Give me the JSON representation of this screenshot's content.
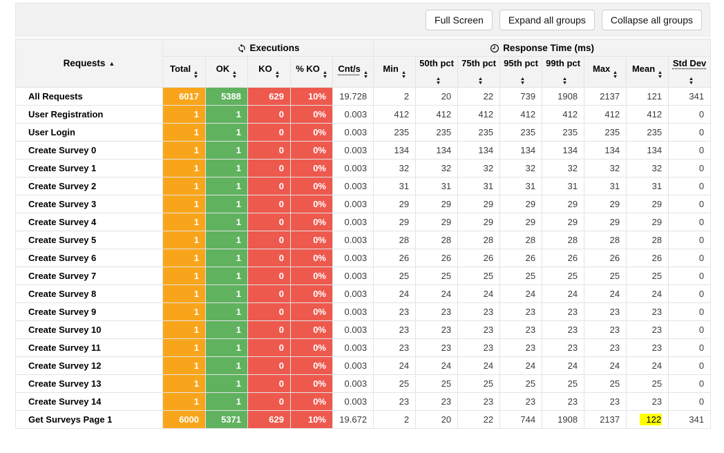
{
  "toolbar": {
    "full_screen": "Full Screen",
    "expand_all": "Expand all groups",
    "collapse_all": "Collapse all groups"
  },
  "table": {
    "requests_label": "Requests",
    "sort_ascending_indicator": "▲",
    "groups": {
      "executions": "Executions",
      "response_time": "Response Time (ms)"
    },
    "columns": {
      "total": "Total",
      "ok": "OK",
      "ko": "KO",
      "ko_pct": "% KO",
      "cnt": "Cnt/s",
      "min": "Min",
      "p50": "50th pct",
      "p75": "75th pct",
      "p95": "95th pct",
      "p99": "99th pct",
      "max": "Max",
      "mean": "Mean",
      "stddev": "Std Dev"
    },
    "accent_colors": {
      "total": "#F9A51B",
      "ok": "#60B25F",
      "ko": "#EE594E",
      "highlight": "#FFFF00"
    },
    "rows": [
      {
        "name": "All Requests",
        "total": "6017",
        "ok": "5388",
        "ko": "629",
        "ko_pct": "10%",
        "cnt": "19.728",
        "min": "2",
        "p50": "20",
        "p75": "22",
        "p95": "739",
        "p99": "1908",
        "max": "2137",
        "mean": "121",
        "stddev": "341"
      },
      {
        "name": "User Registration",
        "total": "1",
        "ok": "1",
        "ko": "0",
        "ko_pct": "0%",
        "cnt": "0.003",
        "min": "412",
        "p50": "412",
        "p75": "412",
        "p95": "412",
        "p99": "412",
        "max": "412",
        "mean": "412",
        "stddev": "0"
      },
      {
        "name": "User Login",
        "total": "1",
        "ok": "1",
        "ko": "0",
        "ko_pct": "0%",
        "cnt": "0.003",
        "min": "235",
        "p50": "235",
        "p75": "235",
        "p95": "235",
        "p99": "235",
        "max": "235",
        "mean": "235",
        "stddev": "0"
      },
      {
        "name": "Create Survey 0",
        "total": "1",
        "ok": "1",
        "ko": "0",
        "ko_pct": "0%",
        "cnt": "0.003",
        "min": "134",
        "p50": "134",
        "p75": "134",
        "p95": "134",
        "p99": "134",
        "max": "134",
        "mean": "134",
        "stddev": "0"
      },
      {
        "name": "Create Survey 1",
        "total": "1",
        "ok": "1",
        "ko": "0",
        "ko_pct": "0%",
        "cnt": "0.003",
        "min": "32",
        "p50": "32",
        "p75": "32",
        "p95": "32",
        "p99": "32",
        "max": "32",
        "mean": "32",
        "stddev": "0"
      },
      {
        "name": "Create Survey 2",
        "total": "1",
        "ok": "1",
        "ko": "0",
        "ko_pct": "0%",
        "cnt": "0.003",
        "min": "31",
        "p50": "31",
        "p75": "31",
        "p95": "31",
        "p99": "31",
        "max": "31",
        "mean": "31",
        "stddev": "0"
      },
      {
        "name": "Create Survey 3",
        "total": "1",
        "ok": "1",
        "ko": "0",
        "ko_pct": "0%",
        "cnt": "0.003",
        "min": "29",
        "p50": "29",
        "p75": "29",
        "p95": "29",
        "p99": "29",
        "max": "29",
        "mean": "29",
        "stddev": "0"
      },
      {
        "name": "Create Survey 4",
        "total": "1",
        "ok": "1",
        "ko": "0",
        "ko_pct": "0%",
        "cnt": "0.003",
        "min": "29",
        "p50": "29",
        "p75": "29",
        "p95": "29",
        "p99": "29",
        "max": "29",
        "mean": "29",
        "stddev": "0"
      },
      {
        "name": "Create Survey 5",
        "total": "1",
        "ok": "1",
        "ko": "0",
        "ko_pct": "0%",
        "cnt": "0.003",
        "min": "28",
        "p50": "28",
        "p75": "28",
        "p95": "28",
        "p99": "28",
        "max": "28",
        "mean": "28",
        "stddev": "0"
      },
      {
        "name": "Create Survey 6",
        "total": "1",
        "ok": "1",
        "ko": "0",
        "ko_pct": "0%",
        "cnt": "0.003",
        "min": "26",
        "p50": "26",
        "p75": "26",
        "p95": "26",
        "p99": "26",
        "max": "26",
        "mean": "26",
        "stddev": "0"
      },
      {
        "name": "Create Survey 7",
        "total": "1",
        "ok": "1",
        "ko": "0",
        "ko_pct": "0%",
        "cnt": "0.003",
        "min": "25",
        "p50": "25",
        "p75": "25",
        "p95": "25",
        "p99": "25",
        "max": "25",
        "mean": "25",
        "stddev": "0"
      },
      {
        "name": "Create Survey 8",
        "total": "1",
        "ok": "1",
        "ko": "0",
        "ko_pct": "0%",
        "cnt": "0.003",
        "min": "24",
        "p50": "24",
        "p75": "24",
        "p95": "24",
        "p99": "24",
        "max": "24",
        "mean": "24",
        "stddev": "0"
      },
      {
        "name": "Create Survey 9",
        "total": "1",
        "ok": "1",
        "ko": "0",
        "ko_pct": "0%",
        "cnt": "0.003",
        "min": "23",
        "p50": "23",
        "p75": "23",
        "p95": "23",
        "p99": "23",
        "max": "23",
        "mean": "23",
        "stddev": "0"
      },
      {
        "name": "Create Survey 10",
        "total": "1",
        "ok": "1",
        "ko": "0",
        "ko_pct": "0%",
        "cnt": "0.003",
        "min": "23",
        "p50": "23",
        "p75": "23",
        "p95": "23",
        "p99": "23",
        "max": "23",
        "mean": "23",
        "stddev": "0"
      },
      {
        "name": "Create Survey 11",
        "total": "1",
        "ok": "1",
        "ko": "0",
        "ko_pct": "0%",
        "cnt": "0.003",
        "min": "23",
        "p50": "23",
        "p75": "23",
        "p95": "23",
        "p99": "23",
        "max": "23",
        "mean": "23",
        "stddev": "0"
      },
      {
        "name": "Create Survey 12",
        "total": "1",
        "ok": "1",
        "ko": "0",
        "ko_pct": "0%",
        "cnt": "0.003",
        "min": "24",
        "p50": "24",
        "p75": "24",
        "p95": "24",
        "p99": "24",
        "max": "24",
        "mean": "24",
        "stddev": "0"
      },
      {
        "name": "Create Survey 13",
        "total": "1",
        "ok": "1",
        "ko": "0",
        "ko_pct": "0%",
        "cnt": "0.003",
        "min": "25",
        "p50": "25",
        "p75": "25",
        "p95": "25",
        "p99": "25",
        "max": "25",
        "mean": "25",
        "stddev": "0"
      },
      {
        "name": "Create Survey 14",
        "total": "1",
        "ok": "1",
        "ko": "0",
        "ko_pct": "0%",
        "cnt": "0.003",
        "min": "23",
        "p50": "23",
        "p75": "23",
        "p95": "23",
        "p99": "23",
        "max": "23",
        "mean": "23",
        "stddev": "0"
      },
      {
        "name": "Get Surveys Page 1",
        "total": "6000",
        "ok": "5371",
        "ko": "629",
        "ko_pct": "10%",
        "cnt": "19.672",
        "min": "2",
        "p50": "20",
        "p75": "22",
        "p95": "744",
        "p99": "1908",
        "max": "2137",
        "mean": "122",
        "stddev": "341",
        "mean_highlighted": true
      }
    ]
  }
}
